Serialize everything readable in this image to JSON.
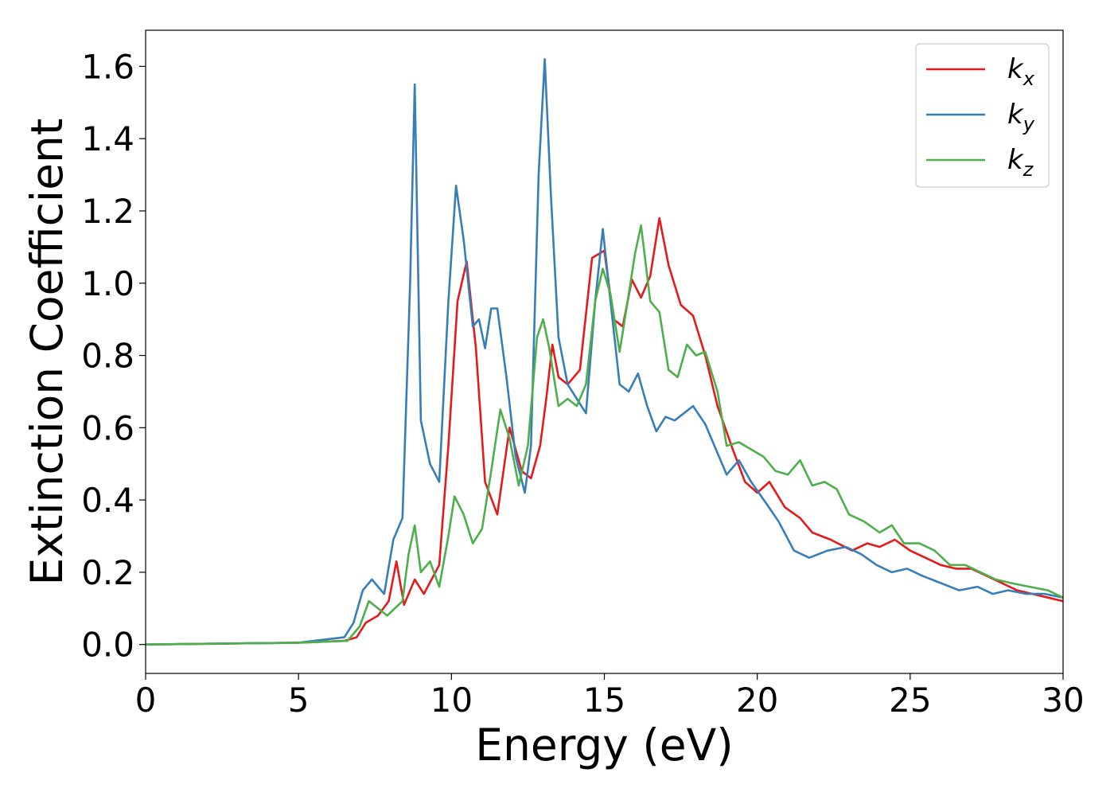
{
  "chart_data": {
    "type": "line",
    "title": "",
    "xlabel": "Energy (eV)",
    "ylabel": "Extinction Coefficient",
    "xlim": [
      0,
      30
    ],
    "ylim": [
      -0.08,
      1.7
    ],
    "xticks": [
      0,
      5,
      10,
      15,
      20,
      25,
      30
    ],
    "xtick_labels": [
      "0",
      "5",
      "10",
      "15",
      "20",
      "25",
      "30"
    ],
    "yticks": [
      0.0,
      0.2,
      0.4,
      0.6,
      0.8,
      1.0,
      1.2,
      1.4,
      1.6
    ],
    "ytick_labels": [
      "0.0",
      "0.2",
      "0.4",
      "0.6",
      "0.8",
      "1.0",
      "1.2",
      "1.4",
      "1.6"
    ],
    "grid": false,
    "legend_position": "top-right",
    "series": [
      {
        "name": "k_x",
        "legend_base": "k",
        "legend_sub": "x",
        "color": "#e41a1c",
        "x": [
          0,
          5,
          6.5,
          6.9,
          7.2,
          7.6,
          7.95,
          8.2,
          8.45,
          8.8,
          9.1,
          9.6,
          9.9,
          10.2,
          10.5,
          10.8,
          11.1,
          11.5,
          11.9,
          12.3,
          12.6,
          12.9,
          13.1,
          13.3,
          13.5,
          13.8,
          14.2,
          14.6,
          15.0,
          15.3,
          15.6,
          15.9,
          16.2,
          16.5,
          16.8,
          17.1,
          17.5,
          17.9,
          18.3,
          18.7,
          19.2,
          19.6,
          20.0,
          20.4,
          20.9,
          21.4,
          21.8,
          22.4,
          23.1,
          23.6,
          24.0,
          24.5,
          25.0,
          25.5,
          26.0,
          26.5,
          27.0,
          27.5,
          28.0,
          28.5,
          29.0,
          29.5,
          30.0
        ],
        "y": [
          0.0,
          0.005,
          0.01,
          0.02,
          0.06,
          0.08,
          0.12,
          0.23,
          0.11,
          0.18,
          0.14,
          0.22,
          0.55,
          0.95,
          1.06,
          0.82,
          0.45,
          0.36,
          0.6,
          0.48,
          0.46,
          0.55,
          0.68,
          0.83,
          0.74,
          0.72,
          0.76,
          1.07,
          1.09,
          0.9,
          0.88,
          1.01,
          0.96,
          1.02,
          1.18,
          1.05,
          0.94,
          0.91,
          0.8,
          0.66,
          0.54,
          0.45,
          0.42,
          0.45,
          0.38,
          0.35,
          0.31,
          0.29,
          0.26,
          0.28,
          0.27,
          0.29,
          0.26,
          0.24,
          0.22,
          0.21,
          0.21,
          0.19,
          0.17,
          0.15,
          0.14,
          0.13,
          0.12
        ]
      },
      {
        "name": "k_y",
        "legend_base": "k",
        "legend_sub": "y",
        "color": "#377eb8",
        "x": [
          0,
          5,
          6.5,
          6.8,
          7.1,
          7.4,
          7.8,
          8.1,
          8.4,
          8.65,
          8.8,
          9.0,
          9.3,
          9.6,
          9.9,
          10.15,
          10.4,
          10.7,
          10.9,
          11.1,
          11.3,
          11.5,
          11.8,
          12.1,
          12.4,
          12.6,
          12.85,
          13.05,
          13.25,
          13.5,
          13.8,
          14.1,
          14.4,
          14.7,
          14.95,
          15.2,
          15.5,
          15.8,
          16.1,
          16.4,
          16.7,
          17.0,
          17.3,
          17.6,
          17.9,
          18.3,
          18.7,
          19.0,
          19.4,
          19.8,
          20.3,
          20.7,
          21.2,
          21.7,
          22.3,
          22.9,
          23.4,
          23.9,
          24.4,
          24.9,
          25.4,
          26.0,
          26.6,
          27.2,
          27.7,
          28.2,
          28.8,
          29.4,
          30.0
        ],
        "y": [
          0.0,
          0.005,
          0.02,
          0.06,
          0.15,
          0.18,
          0.14,
          0.29,
          0.35,
          1.0,
          1.55,
          0.62,
          0.5,
          0.45,
          0.95,
          1.27,
          1.12,
          0.88,
          0.9,
          0.82,
          0.93,
          0.93,
          0.74,
          0.52,
          0.42,
          0.55,
          1.3,
          1.62,
          1.25,
          0.85,
          0.72,
          0.68,
          0.64,
          0.95,
          1.15,
          0.95,
          0.72,
          0.7,
          0.75,
          0.66,
          0.59,
          0.63,
          0.62,
          0.64,
          0.66,
          0.61,
          0.53,
          0.47,
          0.51,
          0.45,
          0.39,
          0.34,
          0.26,
          0.24,
          0.26,
          0.27,
          0.25,
          0.22,
          0.2,
          0.21,
          0.19,
          0.17,
          0.15,
          0.16,
          0.14,
          0.15,
          0.14,
          0.14,
          0.13
        ]
      },
      {
        "name": "k_z",
        "legend_base": "k",
        "legend_sub": "z",
        "color": "#4daf4a",
        "x": [
          0,
          5,
          6.6,
          7.0,
          7.3,
          7.6,
          7.9,
          8.15,
          8.4,
          8.6,
          8.8,
          9.0,
          9.3,
          9.6,
          9.9,
          10.1,
          10.4,
          10.7,
          11.0,
          11.3,
          11.6,
          11.9,
          12.2,
          12.5,
          12.8,
          13.0,
          13.2,
          13.5,
          13.8,
          14.1,
          14.4,
          14.7,
          14.95,
          15.2,
          15.5,
          15.8,
          16.0,
          16.2,
          16.5,
          16.8,
          17.1,
          17.4,
          17.7,
          18.0,
          18.3,
          18.7,
          19.0,
          19.4,
          19.8,
          20.2,
          20.6,
          21.0,
          21.4,
          21.8,
          22.2,
          22.6,
          23.0,
          23.5,
          24.0,
          24.4,
          24.8,
          25.3,
          25.8,
          26.3,
          26.8,
          27.3,
          27.8,
          28.3,
          28.9,
          29.5,
          30.0
        ],
        "y": [
          0.0,
          0.005,
          0.01,
          0.05,
          0.12,
          0.1,
          0.08,
          0.1,
          0.12,
          0.25,
          0.33,
          0.2,
          0.23,
          0.16,
          0.3,
          0.41,
          0.36,
          0.28,
          0.32,
          0.48,
          0.65,
          0.57,
          0.44,
          0.55,
          0.85,
          0.9,
          0.82,
          0.66,
          0.68,
          0.66,
          0.72,
          0.95,
          1.04,
          0.97,
          0.81,
          0.97,
          1.08,
          1.16,
          0.95,
          0.92,
          0.76,
          0.74,
          0.83,
          0.8,
          0.81,
          0.7,
          0.55,
          0.56,
          0.54,
          0.52,
          0.48,
          0.47,
          0.51,
          0.44,
          0.45,
          0.43,
          0.36,
          0.34,
          0.31,
          0.33,
          0.28,
          0.28,
          0.26,
          0.22,
          0.22,
          0.2,
          0.18,
          0.17,
          0.16,
          0.15,
          0.13
        ]
      }
    ]
  }
}
